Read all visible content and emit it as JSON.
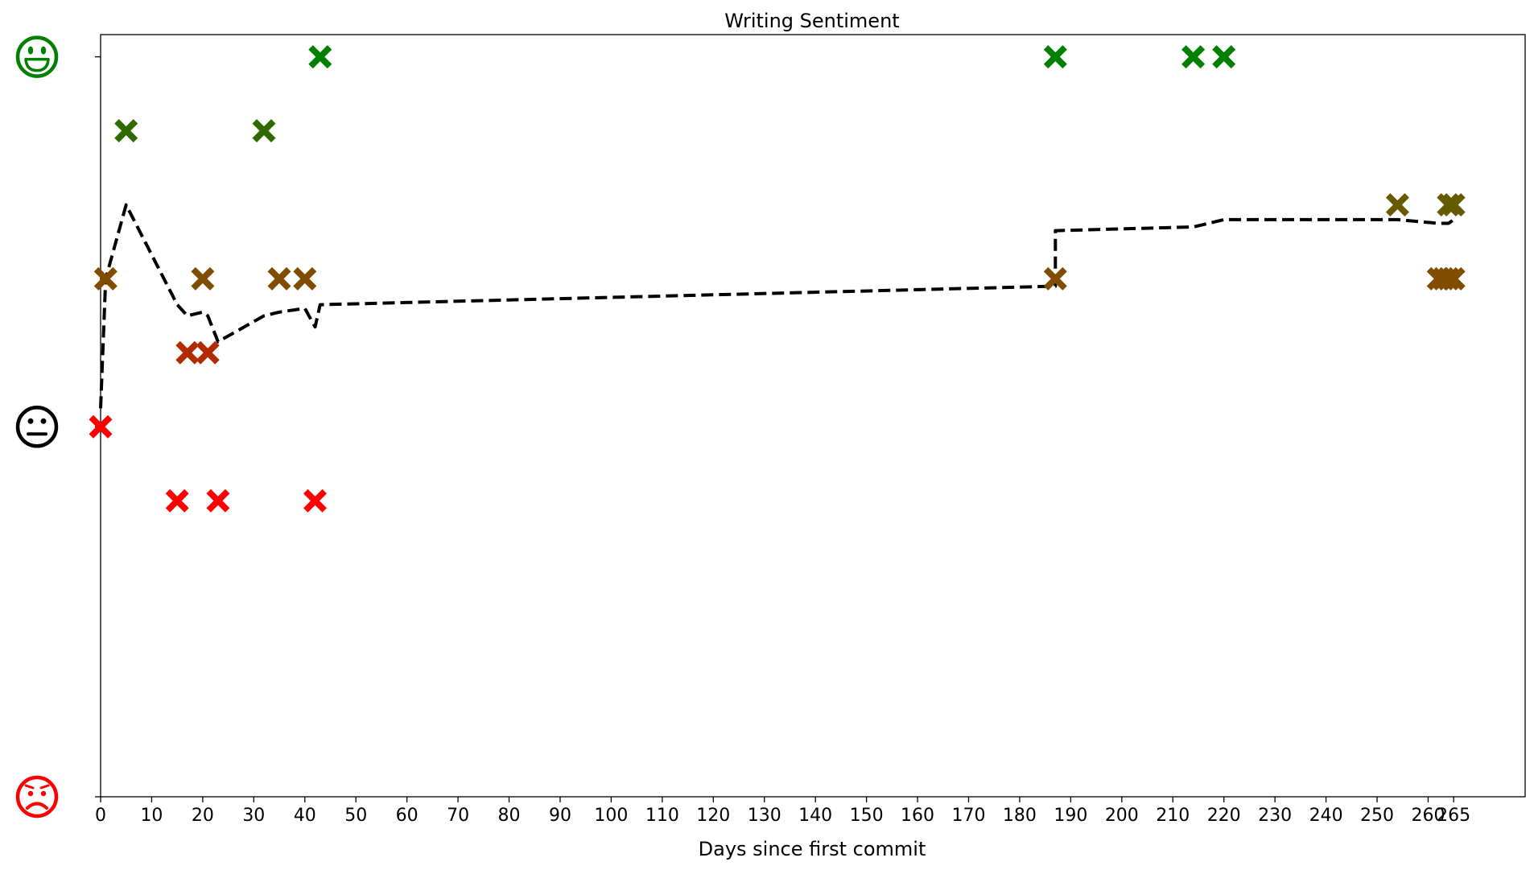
{
  "chart_data": {
    "type": "scatter",
    "title": "Writing Sentiment",
    "xlabel": "Days since first commit",
    "ylabel": "",
    "xlim": [
      0,
      279
    ],
    "ylim": [
      -1,
      1.06
    ],
    "x_ticks": [
      0,
      10,
      20,
      30,
      40,
      50,
      60,
      70,
      80,
      90,
      100,
      110,
      120,
      130,
      140,
      150,
      160,
      170,
      180,
      190,
      200,
      210,
      220,
      230,
      240,
      250,
      260,
      265
    ],
    "x_tick_labels": [
      "0",
      "10",
      "20",
      "30",
      "40",
      "50",
      "60",
      "70",
      "80",
      "90",
      "100",
      "110",
      "120",
      "130",
      "140",
      "150",
      "160",
      "170",
      "180",
      "190",
      "200",
      "210",
      "220",
      "230",
      "240",
      "250",
      "260",
      "265"
    ],
    "y_ticks": [
      {
        "value": 1,
        "icon": "happy-face-icon",
        "color": "#008000"
      },
      {
        "value": 0,
        "icon": "neutral-face-icon",
        "color": "#000000"
      },
      {
        "value": -1,
        "icon": "sad-face-icon",
        "color": "#ff0000"
      }
    ],
    "grid": false,
    "marker": "X",
    "points": [
      {
        "x": 0,
        "y": 0,
        "color": "#ff0000"
      },
      {
        "x": 1,
        "y": 0.4,
        "color": "#7f4c00"
      },
      {
        "x": 5,
        "y": 0.8,
        "color": "#2e6a00"
      },
      {
        "x": 15,
        "y": -0.2,
        "color": "#ff0000"
      },
      {
        "x": 17,
        "y": 0.2,
        "color": "#b22a00"
      },
      {
        "x": 20,
        "y": 0.4,
        "color": "#7f4c00"
      },
      {
        "x": 21,
        "y": 0.2,
        "color": "#b22a00"
      },
      {
        "x": 23,
        "y": -0.2,
        "color": "#ff0000"
      },
      {
        "x": 32,
        "y": 0.8,
        "color": "#2e6a00"
      },
      {
        "x": 35,
        "y": 0.4,
        "color": "#7f4c00"
      },
      {
        "x": 40,
        "y": 0.4,
        "color": "#7f4c00"
      },
      {
        "x": 42,
        "y": -0.2,
        "color": "#ff0000"
      },
      {
        "x": 43,
        "y": 1.0,
        "color": "#008000"
      },
      {
        "x": 187,
        "y": 1.0,
        "color": "#008000"
      },
      {
        "x": 187,
        "y": 0.4,
        "color": "#7f4c00"
      },
      {
        "x": 214,
        "y": 1.0,
        "color": "#008000"
      },
      {
        "x": 220,
        "y": 1.0,
        "color": "#008000"
      },
      {
        "x": 254,
        "y": 0.6,
        "color": "#665a00"
      },
      {
        "x": 262,
        "y": 0.4,
        "color": "#7f4c00"
      },
      {
        "x": 263,
        "y": 0.4,
        "color": "#7f4c00"
      },
      {
        "x": 264,
        "y": 0.4,
        "color": "#7f4c00"
      },
      {
        "x": 264,
        "y": 0.6,
        "color": "#665a00"
      },
      {
        "x": 265,
        "y": 0.4,
        "color": "#7f4c00"
      },
      {
        "x": 265,
        "y": 0.6,
        "color": "#665a00"
      }
    ],
    "trend_line": {
      "style": "dashed",
      "color": "#000000",
      "points": [
        [
          0,
          0.05
        ],
        [
          1,
          0.4
        ],
        [
          5,
          0.6
        ],
        [
          15,
          0.33
        ],
        [
          17,
          0.3
        ],
        [
          20,
          0.31
        ],
        [
          21,
          0.3
        ],
        [
          23,
          0.23
        ],
        [
          32,
          0.3
        ],
        [
          35,
          0.31
        ],
        [
          40,
          0.32
        ],
        [
          42,
          0.27
        ],
        [
          43,
          0.33
        ],
        [
          187,
          0.38
        ],
        [
          187,
          0.53
        ],
        [
          214,
          0.54
        ],
        [
          220,
          0.56
        ],
        [
          254,
          0.56
        ],
        [
          262,
          0.55
        ],
        [
          264,
          0.55
        ],
        [
          265,
          0.56
        ]
      ]
    }
  }
}
